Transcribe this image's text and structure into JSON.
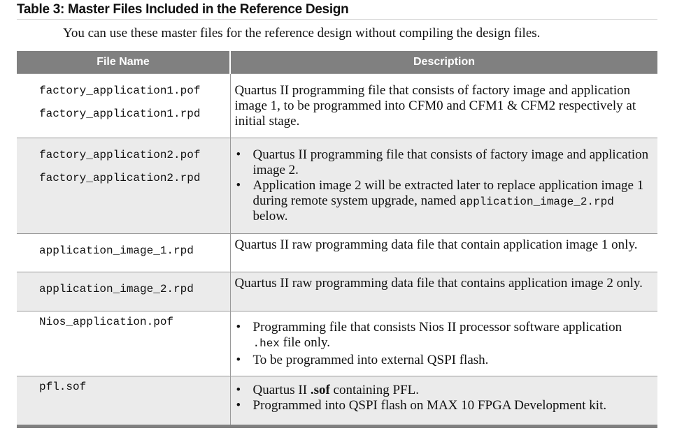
{
  "title": "Table 3: Master Files Included in the Reference Design",
  "intro": "You can use these master files for the reference design without compiling the design files.",
  "columns": [
    "File Name",
    "Description"
  ],
  "rows": [
    {
      "files": [
        "factory_application1.pof",
        "factory_application1.rpd"
      ],
      "text": "Quartus II programming file that consists of factory image and application image 1, to be programmed into CFM0 and CFM1 & CFM2 respectively at initial stage."
    },
    {
      "files": [
        "factory_application2.pof",
        "factory_application2.rpd"
      ],
      "b1": "Quartus II programming file that consists of factory image and application image 2.",
      "b2a": "Application image 2 will be extracted later to replace application image 1 during remote system upgrade, named ",
      "b2code": "application_image_2.rpd",
      "b2b": " below."
    },
    {
      "files": [
        "application_image_1.rpd"
      ],
      "text": "Quartus II raw programming data file that contain application image 1 only."
    },
    {
      "files": [
        "application_image_2.rpd"
      ],
      "text": "Quartus II raw programming data file that contains application image 2 only."
    },
    {
      "files": [
        "Nios_application.pof"
      ],
      "b1a": "Programming file that consists Nios II processor software application ",
      "b1code": ".hex",
      "b1b": " file only.",
      "b2": "To be programmed into external QSPI flash."
    },
    {
      "files": [
        "pfl.sof"
      ],
      "b1a": "Quartus II ",
      "b1bold": ".sof",
      "b1b": " containing PFL.",
      "b2": "Programmed into QSPI flash on MAX 10 FPGA Development kit."
    }
  ]
}
